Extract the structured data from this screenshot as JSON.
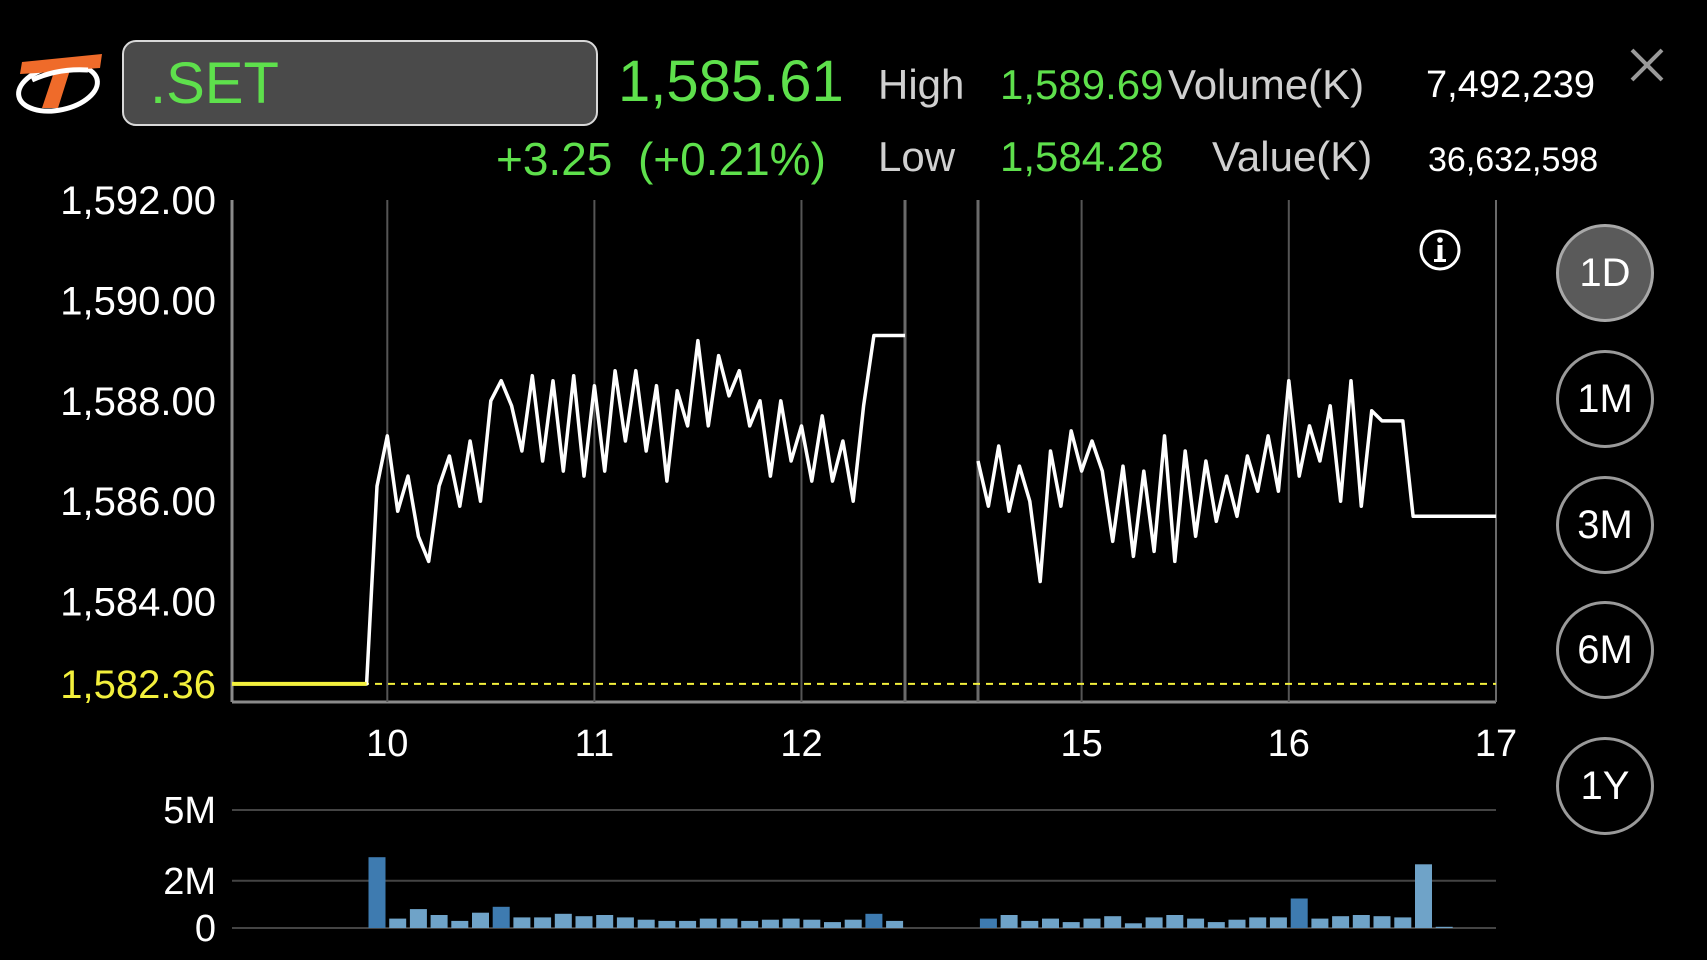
{
  "header": {
    "symbol": ".SET",
    "last_price": "1,585.61",
    "change": "+3.25",
    "change_percent": "(+0.21%)",
    "high_label": "High",
    "high_value": "1,589.69",
    "low_label": "Low",
    "low_value": "1,584.28",
    "volume_label": "Volume(K)",
    "volume_value": "7,492,239",
    "value_label": "Value(K)",
    "value_value": "36,632,598"
  },
  "periods": [
    {
      "label": "1D",
      "active": true
    },
    {
      "label": "1M",
      "active": false
    },
    {
      "label": "3M",
      "active": false
    },
    {
      "label": "6M",
      "active": false
    },
    {
      "label": "1Y",
      "active": false
    }
  ],
  "icons": {
    "logo": "brand-logo",
    "info": "info-icon",
    "close": "close-icon"
  },
  "colors": {
    "up": "#5ee04c",
    "prev_close": "#f3f03c",
    "line": "#ffffff",
    "volume_bar": "#6fa3c8",
    "volume_bar_peak": "#3e7bb0"
  },
  "chart_data": [
    {
      "type": "line",
      "title": "",
      "xlabel": "",
      "ylabel": "",
      "ylim": [
        1582.0,
        1592.0
      ],
      "y_ticks": [
        "1,592.00",
        "1,590.00",
        "1,588.00",
        "1,586.00",
        "1,584.00"
      ],
      "prev_close": 1582.36,
      "prev_close_label": "1,582.36",
      "x_ticks": [
        {
          "label": "10",
          "t": 10.0
        },
        {
          "label": "11",
          "t": 11.0
        },
        {
          "label": "12",
          "t": 12.0
        },
        {
          "label": "15",
          "t": 15.0
        },
        {
          "label": "16",
          "t": 16.0
        },
        {
          "label": "17",
          "t": 17.0
        }
      ],
      "session_segments": [
        {
          "from": 9.25,
          "to": 12.5
        },
        {
          "from": 14.5,
          "to": 17.0
        }
      ],
      "grid": true,
      "series": [
        {
          "x": [
            9.25,
            9.9,
            9.95,
            10.0,
            10.05,
            10.1,
            10.15,
            10.2,
            10.25,
            10.3,
            10.35,
            10.4,
            10.45,
            10.5,
            10.55,
            10.6,
            10.65,
            10.7,
            10.75,
            10.8,
            10.85,
            10.9,
            10.95,
            11.0,
            11.05,
            11.1,
            11.15,
            11.2,
            11.25,
            11.3,
            11.35,
            11.4,
            11.45,
            11.5,
            11.55,
            11.6,
            11.65,
            11.7,
            11.75,
            11.8,
            11.85,
            11.9,
            11.95,
            12.0,
            12.05,
            12.1,
            12.15,
            12.2,
            12.25,
            12.3,
            12.35,
            12.4,
            12.45,
            12.5
          ],
          "y": [
            1582.36,
            1582.36,
            1586.3,
            1587.3,
            1585.8,
            1586.5,
            1585.3,
            1584.8,
            1586.3,
            1586.9,
            1585.9,
            1587.2,
            1586.0,
            1588.0,
            1588.4,
            1587.9,
            1587.0,
            1588.5,
            1586.8,
            1588.4,
            1586.6,
            1588.5,
            1586.5,
            1588.3,
            1586.6,
            1588.6,
            1587.2,
            1588.6,
            1587.0,
            1588.3,
            1586.4,
            1588.2,
            1587.5,
            1589.2,
            1587.5,
            1588.9,
            1588.1,
            1588.6,
            1587.5,
            1588.0,
            1586.5,
            1588.0,
            1586.8,
            1587.5,
            1586.4,
            1587.7,
            1586.4,
            1587.2,
            1586.0,
            1587.9,
            1589.3,
            1589.3,
            1589.3,
            1589.3
          ],
          "x2": [
            14.5,
            14.55,
            14.6,
            14.65,
            14.7,
            14.75,
            14.8,
            14.85,
            14.9,
            14.95,
            15.0,
            15.05,
            15.1,
            15.15,
            15.2,
            15.25,
            15.3,
            15.35,
            15.4,
            15.45,
            15.5,
            15.55,
            15.6,
            15.65,
            15.7,
            15.75,
            15.8,
            15.85,
            15.9,
            15.95,
            16.0,
            16.05,
            16.1,
            16.15,
            16.2,
            16.25,
            16.3,
            16.35,
            16.4,
            16.45,
            16.5,
            16.55,
            16.6,
            16.65,
            16.7,
            16.8,
            17.0
          ],
          "y2": [
            1586.8,
            1585.9,
            1587.1,
            1585.8,
            1586.7,
            1586.0,
            1584.4,
            1587.0,
            1585.9,
            1587.4,
            1586.6,
            1587.2,
            1586.6,
            1585.2,
            1586.7,
            1584.9,
            1586.6,
            1585.0,
            1587.3,
            1584.8,
            1587.0,
            1585.3,
            1586.8,
            1585.6,
            1586.5,
            1585.7,
            1586.9,
            1586.2,
            1587.3,
            1586.2,
            1588.4,
            1586.5,
            1587.5,
            1586.8,
            1587.9,
            1586.0,
            1588.4,
            1585.9,
            1587.8,
            1587.6,
            1587.6,
            1587.6,
            1585.7,
            1585.7,
            1585.7,
            1585.7,
            1585.7
          ]
        }
      ]
    },
    {
      "type": "bar",
      "title": "",
      "xlabel": "",
      "ylabel": "",
      "ylim": [
        0,
        5
      ],
      "y_ticks": [
        {
          "label": "5M",
          "v": 5
        },
        {
          "label": "2M",
          "v": 2
        },
        {
          "label": "0",
          "v": 0
        }
      ],
      "grid": true,
      "bars": [
        {
          "t": 9.95,
          "v": 3.0,
          "peak": true
        },
        {
          "t": 10.05,
          "v": 0.4
        },
        {
          "t": 10.15,
          "v": 0.8
        },
        {
          "t": 10.25,
          "v": 0.55
        },
        {
          "t": 10.35,
          "v": 0.3
        },
        {
          "t": 10.45,
          "v": 0.65
        },
        {
          "t": 10.55,
          "v": 0.9,
          "peak": true
        },
        {
          "t": 10.65,
          "v": 0.45
        },
        {
          "t": 10.75,
          "v": 0.45
        },
        {
          "t": 10.85,
          "v": 0.6
        },
        {
          "t": 10.95,
          "v": 0.5
        },
        {
          "t": 11.05,
          "v": 0.55
        },
        {
          "t": 11.15,
          "v": 0.45
        },
        {
          "t": 11.25,
          "v": 0.35
        },
        {
          "t": 11.35,
          "v": 0.3
        },
        {
          "t": 11.45,
          "v": 0.3
        },
        {
          "t": 11.55,
          "v": 0.4
        },
        {
          "t": 11.65,
          "v": 0.4
        },
        {
          "t": 11.75,
          "v": 0.3
        },
        {
          "t": 11.85,
          "v": 0.35
        },
        {
          "t": 11.95,
          "v": 0.4
        },
        {
          "t": 12.05,
          "v": 0.35
        },
        {
          "t": 12.15,
          "v": 0.25
        },
        {
          "t": 12.25,
          "v": 0.35
        },
        {
          "t": 12.35,
          "v": 0.6,
          "peak": true
        },
        {
          "t": 12.45,
          "v": 0.3
        },
        {
          "t": 14.55,
          "v": 0.4,
          "peak": true
        },
        {
          "t": 14.65,
          "v": 0.55
        },
        {
          "t": 14.75,
          "v": 0.3
        },
        {
          "t": 14.85,
          "v": 0.4
        },
        {
          "t": 14.95,
          "v": 0.25
        },
        {
          "t": 15.05,
          "v": 0.4
        },
        {
          "t": 15.15,
          "v": 0.5
        },
        {
          "t": 15.25,
          "v": 0.2
        },
        {
          "t": 15.35,
          "v": 0.45
        },
        {
          "t": 15.45,
          "v": 0.55
        },
        {
          "t": 15.55,
          "v": 0.4
        },
        {
          "t": 15.65,
          "v": 0.25
        },
        {
          "t": 15.75,
          "v": 0.35
        },
        {
          "t": 15.85,
          "v": 0.45
        },
        {
          "t": 15.95,
          "v": 0.45
        },
        {
          "t": 16.05,
          "v": 1.25,
          "peak": true
        },
        {
          "t": 16.15,
          "v": 0.4
        },
        {
          "t": 16.25,
          "v": 0.5
        },
        {
          "t": 16.35,
          "v": 0.55
        },
        {
          "t": 16.45,
          "v": 0.5
        },
        {
          "t": 16.55,
          "v": 0.45
        },
        {
          "t": 16.65,
          "v": 2.7
        },
        {
          "t": 16.75,
          "v": 0.05
        }
      ]
    }
  ]
}
